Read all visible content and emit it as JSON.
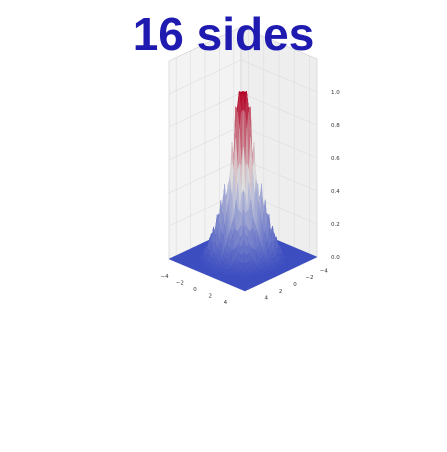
{
  "title": "16 sides",
  "chart_data": {
    "type": "surface3d",
    "title": "16 sides",
    "colormap": "coolwarm",
    "colors": {
      "low": "#3b4cc0",
      "mid": "#dddddd",
      "high": "#b40426",
      "title": "#1f1ab0"
    },
    "grid": true,
    "x_ticks": [
      "−4",
      "−2",
      "0",
      "2",
      "4"
    ],
    "y_ticks": [
      "−4",
      "−2",
      "0",
      "2",
      "4"
    ],
    "z_ticks": [
      "0.0",
      "0.2",
      "0.4",
      "0.6",
      "0.8",
      "1.0"
    ],
    "xlim": [
      -5,
      5
    ],
    "ylim": [
      -5,
      5
    ],
    "zlim": [
      0,
      1
    ],
    "z_profile": [
      {
        "r": 0.0,
        "z": 1.0
      },
      {
        "r": 0.5,
        "z": 1.0
      },
      {
        "r": 0.75,
        "z": 0.9
      },
      {
        "r": 1.0,
        "z": 0.75
      },
      {
        "r": 1.25,
        "z": 0.55
      },
      {
        "r": 1.5,
        "z": 0.4
      },
      {
        "r": 2.0,
        "z": 0.28
      },
      {
        "r": 2.5,
        "z": 0.18
      },
      {
        "r": 3.0,
        "z": 0.1
      },
      {
        "r": 3.5,
        "z": 0.04
      },
      {
        "r": 4.0,
        "z": 0.0
      }
    ]
  }
}
